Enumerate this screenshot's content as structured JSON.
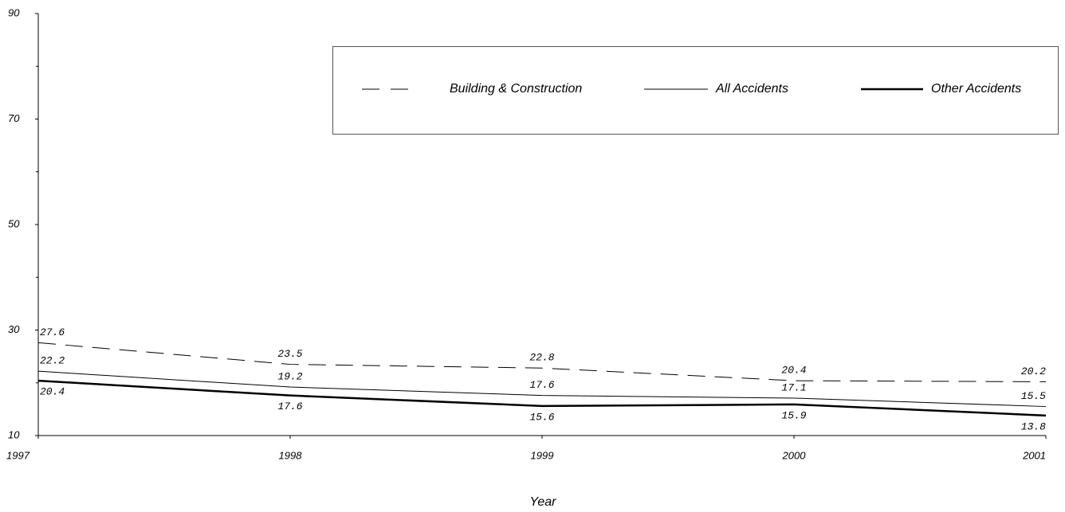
{
  "chart_data": {
    "type": "line",
    "x": [
      1997,
      1998,
      1999,
      2000,
      2001
    ],
    "xlim": [
      1997,
      2001
    ],
    "xticks": [
      1997,
      1998,
      1999,
      2000,
      2001
    ],
    "ylim": [
      10,
      90
    ],
    "yticks": [
      10,
      30,
      50,
      70,
      90
    ],
    "yminorticks": [
      20,
      40,
      60,
      80
    ],
    "xlabel": "Year",
    "grid": false,
    "legend": "top-right",
    "series": [
      {
        "name": "Building & Construction",
        "color": "#000000",
        "line_style": "dashed",
        "line_width": 1,
        "label_position": "above",
        "values": [
          27.6,
          23.5,
          22.8,
          20.4,
          20.2
        ]
      },
      {
        "name": "All Accidents",
        "color": "#000000",
        "line_style": "solid",
        "line_width": 1,
        "label_position": "above",
        "values": [
          22.2,
          19.2,
          17.6,
          17.1,
          15.5
        ]
      },
      {
        "name": "Other Accidents",
        "color": "#000000",
        "line_style": "solid",
        "line_width": 2.5,
        "label_position": "below",
        "values": [
          20.4,
          17.6,
          15.6,
          15.9,
          13.8
        ]
      }
    ]
  }
}
